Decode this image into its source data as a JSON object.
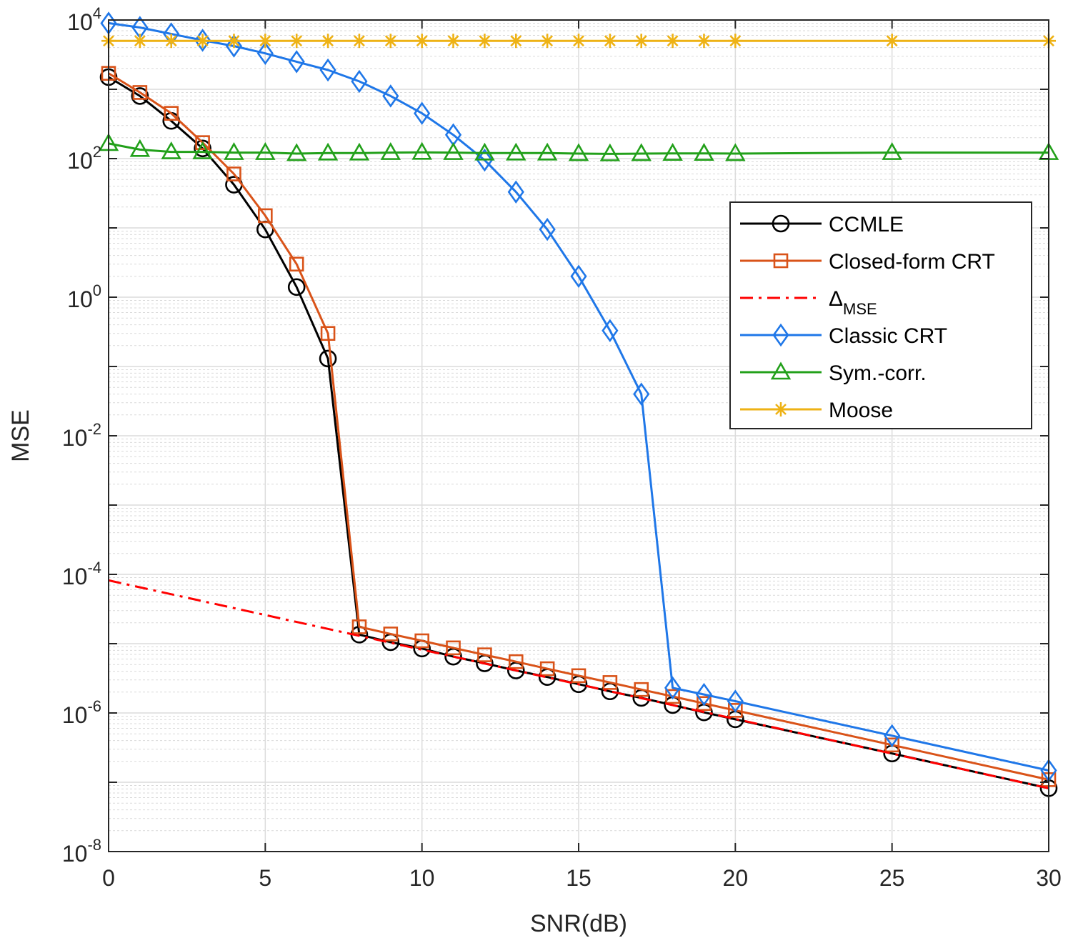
{
  "chart_data": {
    "type": "line",
    "title": "",
    "xlabel": "SNR(dB)",
    "ylabel": "MSE",
    "xscale": "linear",
    "yscale": "log",
    "xlim": [
      0,
      30
    ],
    "ylim": [
      1e-08,
      10000
    ],
    "grid": true,
    "minor_grid": true,
    "legend_position": "center-right",
    "x_ticks": [
      0,
      5,
      10,
      15,
      20,
      25,
      30
    ],
    "x_tick_labels": [
      "0",
      "5",
      "10",
      "15",
      "20",
      "25",
      "30"
    ],
    "y_ticks": [
      {
        "value": 1e-08,
        "base": "10",
        "exp": "-8"
      },
      {
        "value": 1e-06,
        "base": "10",
        "exp": "-6"
      },
      {
        "value": 0.0001,
        "base": "10",
        "exp": "-4"
      },
      {
        "value": 0.01,
        "base": "10",
        "exp": "-2"
      },
      {
        "value": 1,
        "base": "10",
        "exp": "0"
      },
      {
        "value": 100,
        "base": "10",
        "exp": "2"
      },
      {
        "value": 10000,
        "base": "10",
        "exp": "4"
      }
    ],
    "series": [
      {
        "name": "CCMLE",
        "color": "#000000",
        "marker": "circle",
        "dash": "solid",
        "x": [
          0,
          1,
          2,
          3,
          4,
          5,
          6,
          7,
          8,
          9,
          10,
          11,
          12,
          13,
          14,
          15,
          16,
          17,
          18,
          19,
          20,
          25,
          30
        ],
        "y": [
          1500,
          800,
          350,
          140,
          42,
          9.5,
          1.4,
          0.13,
          1.35e-05,
          1.05e-05,
          8.5e-06,
          6.5e-06,
          5.2e-06,
          4.1e-06,
          3.3e-06,
          2.6e-06,
          2.05e-06,
          1.65e-06,
          1.3e-06,
          1.02e-06,
          8.1e-07,
          2.6e-07,
          8.2e-08
        ]
      },
      {
        "name": "Closed-form CRT",
        "color": "#d95319",
        "marker": "square",
        "dash": "solid",
        "x": [
          0,
          1,
          2,
          3,
          4,
          5,
          6,
          7,
          8,
          9,
          10,
          11,
          12,
          13,
          14,
          15,
          16,
          17,
          18,
          19,
          20,
          25,
          30
        ],
        "y": [
          1700,
          900,
          450,
          170,
          60,
          15,
          3,
          0.3,
          1.75e-05,
          1.38e-05,
          1.1e-05,
          8.7e-06,
          6.9e-06,
          5.5e-06,
          4.35e-06,
          3.45e-06,
          2.75e-06,
          2.18e-06,
          1.73e-06,
          1.37e-06,
          1.09e-06,
          3.45e-07,
          1.09e-07
        ]
      },
      {
        "name": "Δ_MSE",
        "label_main": "Δ",
        "label_sub": "MSE",
        "color": "#ff0000",
        "marker": "none",
        "dash": "dashdot",
        "x": [
          0,
          30
        ],
        "y": [
          8.2e-05,
          8.2e-08
        ]
      },
      {
        "name": "Classic CRT",
        "color": "#1f77e8",
        "marker": "diamond",
        "dash": "solid",
        "x": [
          0,
          1,
          2,
          3,
          4,
          5,
          6,
          7,
          8,
          9,
          10,
          11,
          12,
          13,
          14,
          15,
          16,
          17,
          18,
          19,
          20,
          25,
          30
        ],
        "y": [
          9000,
          7800,
          6300,
          5100,
          4200,
          3300,
          2500,
          1900,
          1300,
          800,
          450,
          220,
          95,
          33,
          9.5,
          2,
          0.33,
          0.04,
          2.3e-06,
          1.85e-06,
          1.48e-06,
          4.7e-07,
          1.48e-07
        ]
      },
      {
        "name": "Sym.-corr.",
        "color": "#22a01a",
        "marker": "triangle",
        "dash": "solid",
        "x": [
          0,
          1,
          2,
          3,
          4,
          5,
          6,
          7,
          8,
          9,
          10,
          11,
          12,
          13,
          14,
          15,
          16,
          17,
          18,
          19,
          20,
          25,
          30
        ],
        "y": [
          165,
          135,
          125,
          125,
          122,
          122,
          118,
          120,
          120,
          122,
          123,
          122,
          120,
          120,
          120,
          118,
          117,
          118,
          119,
          119,
          118,
          122,
          122
        ]
      },
      {
        "name": "Moose",
        "color": "#eeb215",
        "marker": "asterisk",
        "dash": "solid",
        "x": [
          0,
          1,
          2,
          3,
          4,
          5,
          6,
          7,
          8,
          9,
          10,
          11,
          12,
          13,
          14,
          15,
          16,
          17,
          18,
          19,
          20,
          25,
          30
        ],
        "y": [
          5000,
          5000,
          5000,
          5000,
          5000,
          5000,
          5000,
          5000,
          5000,
          5000,
          5000,
          5000,
          5000,
          5000,
          5000,
          5000,
          5000,
          5000,
          5000,
          5000,
          5000,
          5000,
          5000
        ]
      }
    ]
  }
}
